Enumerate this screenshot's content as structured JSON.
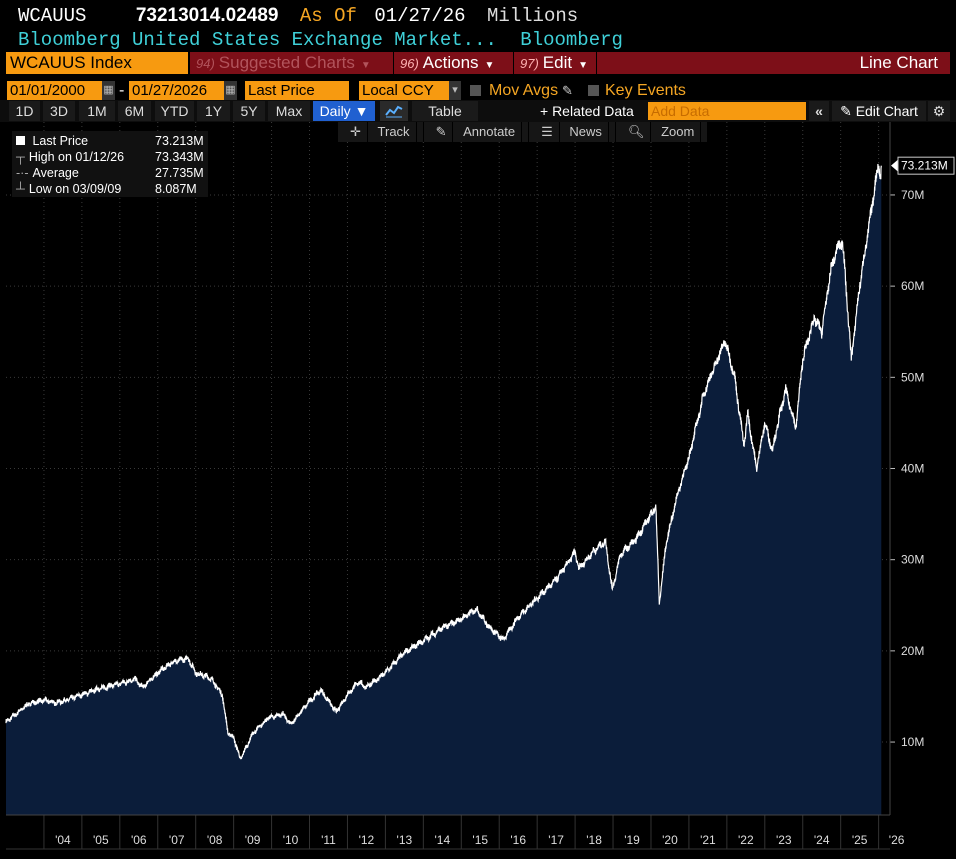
{
  "header": {
    "ticker": "WCAUUS",
    "price": "73213014.02489",
    "as_of_label": "As Of",
    "as_of_date": "01/27/26",
    "units": "Millions",
    "description": "Bloomberg United States Exchange Market...",
    "source": "Bloomberg"
  },
  "menubar": {
    "security": "WCAUUS Index",
    "suggested": {
      "num": "94)",
      "label": "Suggested Charts"
    },
    "actions": {
      "num": "96)",
      "label": "Actions"
    },
    "edit": {
      "num": "97)",
      "label": "Edit"
    },
    "chart_type": "Line Chart"
  },
  "controls": {
    "start_date": "01/01/2000",
    "dash": "-",
    "end_date": "01/27/2026",
    "field": "Last Price",
    "currency": "Local CCY",
    "mov_avgs": "Mov Avgs",
    "key_events": "Key Events"
  },
  "ranges": [
    "1D",
    "3D",
    "1M",
    "6M",
    "YTD",
    "1Y",
    "5Y",
    "Max"
  ],
  "period": "Daily",
  "table_label": "Table",
  "related_data": "+ Related Data",
  "add_data_placeholder": "Add Data",
  "edit_chart": "Edit Chart",
  "toolbar": {
    "track": "Track",
    "annotate": "Annotate",
    "news": "News",
    "zoom": "Zoom"
  },
  "legend": {
    "last_label": "Last Price",
    "last_value": "73.213M",
    "high_label": "High on 01/12/26",
    "high_value": "73.343M",
    "avg_label": "Average",
    "avg_value": "27.735M",
    "low_label": "Low on 03/09/09",
    "low_value": "8.087M"
  },
  "colors": {
    "line": "#ffffff",
    "fill": "#0b1d3a",
    "accent": "#f79a10",
    "menu": "#7d0f18"
  },
  "chart_data": {
    "type": "area",
    "title": "WCAUUS Index Line Chart",
    "ylabel": "Millions",
    "ylim": [
      2,
      78
    ],
    "xlim": [
      2003.0,
      2026.3
    ],
    "x_ticks": [
      2004,
      2005,
      2006,
      2007,
      2008,
      2009,
      2010,
      2011,
      2012,
      2013,
      2014,
      2015,
      2016,
      2017,
      2018,
      2019,
      2020,
      2021,
      2022,
      2023,
      2024,
      2025,
      2026
    ],
    "x_tick_labels": [
      "'04",
      "'05",
      "'06",
      "'07",
      "'08",
      "'09",
      "'10",
      "'11",
      "'12",
      "'13",
      "'14",
      "'15",
      "'16",
      "'17",
      "'18",
      "'19",
      "'20",
      "'21",
      "'22",
      "'23",
      "'24",
      "'25",
      "'26"
    ],
    "y_ticks": [
      10,
      20,
      30,
      40,
      50,
      60,
      70
    ],
    "y_tick_labels": [
      "10M",
      "20M",
      "30M",
      "40M",
      "50M",
      "60M",
      "70M"
    ],
    "last_value_label": "73.213M",
    "series": [
      {
        "name": "Last Price",
        "x": [
          2003.0,
          2003.3,
          2003.6,
          2004.0,
          2004.3,
          2004.6,
          2005.0,
          2005.5,
          2006.0,
          2006.4,
          2006.6,
          2007.0,
          2007.4,
          2007.8,
          2008.0,
          2008.4,
          2008.7,
          2008.85,
          2009.0,
          2009.18,
          2009.5,
          2009.9,
          2010.3,
          2010.5,
          2011.0,
          2011.3,
          2011.7,
          2012.0,
          2012.3,
          2012.5,
          2013.0,
          2013.5,
          2014.0,
          2014.5,
          2015.0,
          2015.4,
          2015.7,
          2016.1,
          2016.5,
          2017.0,
          2017.5,
          2018.0,
          2018.1,
          2018.5,
          2018.8,
          2018.98,
          2019.2,
          2019.6,
          2020.0,
          2020.13,
          2020.22,
          2020.4,
          2020.7,
          2021.0,
          2021.4,
          2021.95,
          2022.2,
          2022.45,
          2022.55,
          2022.78,
          2023.0,
          2023.2,
          2023.4,
          2023.55,
          2023.82,
          2024.0,
          2024.3,
          2024.5,
          2024.75,
          2024.9,
          2025.05,
          2025.28,
          2025.5,
          2025.8,
          2025.9,
          2026.0,
          2026.05,
          2026.07
        ],
        "values": [
          12.2,
          13.2,
          14.2,
          14.6,
          14.3,
          14.6,
          15.2,
          15.9,
          16.4,
          16.9,
          16.0,
          17.6,
          18.8,
          19.2,
          17.6,
          17.0,
          15.2,
          11.0,
          10.5,
          8.1,
          10.9,
          12.6,
          13.1,
          11.9,
          14.5,
          15.7,
          13.3,
          15.2,
          16.6,
          16.0,
          17.6,
          19.8,
          21.1,
          22.5,
          23.5,
          24.6,
          22.8,
          21.2,
          23.7,
          25.8,
          27.8,
          30.8,
          29.0,
          31.0,
          32.0,
          26.7,
          30.6,
          32.2,
          35.0,
          35.8,
          25.2,
          31.8,
          37.2,
          41.2,
          48.3,
          54.0,
          50.2,
          42.5,
          46.0,
          40.0,
          45.0,
          42.0,
          46.0,
          48.6,
          44.5,
          52.0,
          56.5,
          55.0,
          62.0,
          64.0,
          65.0,
          52.0,
          60.0,
          68.0,
          71.0,
          73.34,
          72.0,
          73.21
        ]
      }
    ]
  }
}
